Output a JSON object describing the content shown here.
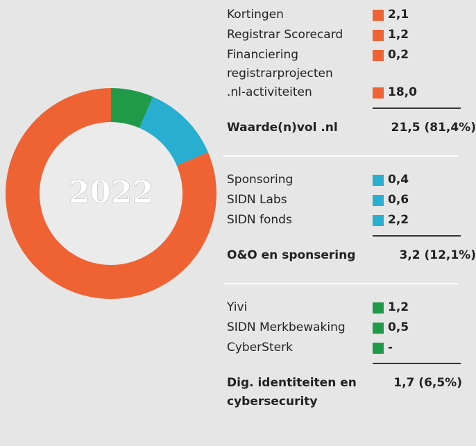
{
  "chart_data": {
    "type": "pie",
    "center_label": "2022",
    "groups": [
      {
        "name": "Waarde(n)vol .nl",
        "total_label": "21,5 (81,4%)",
        "total": 21.5,
        "share": 81.4,
        "color": "#ef6234",
        "items": [
          {
            "name": "Kortingen",
            "value": 2.1,
            "value_label": "2,1"
          },
          {
            "name": "Registrar Scorecard",
            "value": 1.2,
            "value_label": "1,2"
          },
          {
            "name": "Financiering registrarprojecten",
            "value": 0.2,
            "value_label": "0,2"
          },
          {
            "name": ".nl-activiteiten",
            "value": 18.0,
            "value_label": "18,0"
          }
        ]
      },
      {
        "name": "O&O en sponsering",
        "total_label": "3,2 (12,1%)",
        "total": 3.2,
        "share": 12.1,
        "color": "#27aed0",
        "items": [
          {
            "name": "Sponsoring",
            "value": 0.4,
            "value_label": "0,4"
          },
          {
            "name": "SIDN Labs",
            "value": 0.6,
            "value_label": "0,6"
          },
          {
            "name": "SIDN fonds",
            "value": 2.2,
            "value_label": "2,2"
          }
        ]
      },
      {
        "name": "Dig. identiteiten en cybersecurity",
        "total_label": "1,7 (6,5%)",
        "total": 1.7,
        "share": 6.5,
        "color": "#1f9a48",
        "items": [
          {
            "name": "Yivi",
            "value": 1.2,
            "value_label": "1,2"
          },
          {
            "name": "SIDN Merkbewaking",
            "value": 0.5,
            "value_label": "0,5"
          },
          {
            "name": "CyberSterk",
            "value": null,
            "value_label": "-"
          }
        ]
      }
    ]
  }
}
